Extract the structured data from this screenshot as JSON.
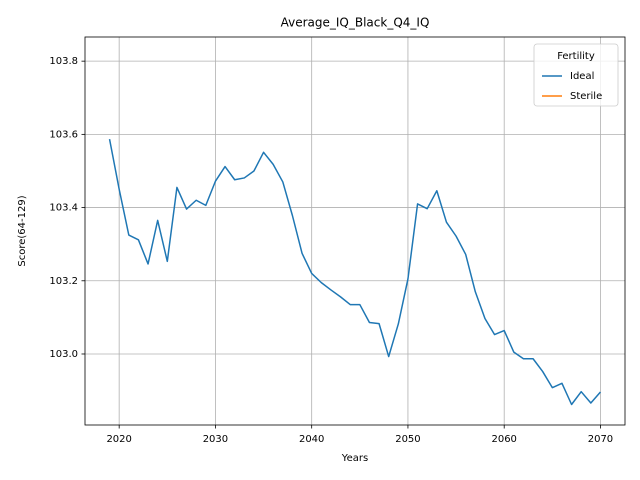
{
  "chart_data": {
    "type": "line",
    "title": "Average_IQ_Black_Q4_IQ",
    "x_label": "Years",
    "y_label": "Score(64-129)",
    "x": [
      2019,
      2020,
      2021,
      2022,
      2023,
      2024,
      2025,
      2026,
      2027,
      2028,
      2029,
      2030,
      2031,
      2032,
      2033,
      2034,
      2035,
      2036,
      2037,
      2038,
      2039,
      2040,
      2041,
      2042,
      2043,
      2044,
      2045,
      2046,
      2047,
      2048,
      2049,
      2050,
      2051,
      2052,
      2053,
      2054,
      2055,
      2056,
      2057,
      2058,
      2059,
      2060,
      2061,
      2062,
      2063,
      2064,
      2065,
      2066,
      2067,
      2068,
      2069,
      2070
    ],
    "series": [
      {
        "name": "Ideal",
        "color": "#1f77b4",
        "values": [
          103.587,
          103.45,
          103.325,
          103.312,
          103.246,
          103.365,
          103.253,
          103.455,
          103.396,
          103.42,
          103.406,
          103.472,
          103.512,
          103.476,
          103.481,
          103.5,
          103.551,
          103.518,
          103.47,
          103.378,
          103.275,
          103.22,
          103.195,
          103.175,
          103.156,
          103.135,
          103.135,
          103.086,
          103.083,
          102.993,
          103.082,
          103.205,
          103.41,
          103.397,
          103.446,
          103.36,
          103.322,
          103.272,
          103.17,
          103.097,
          103.053,
          103.064,
          103.005,
          102.987,
          102.987,
          102.952,
          102.908,
          102.92,
          102.862,
          102.897,
          102.866,
          102.896
        ]
      },
      {
        "name": "Sterile",
        "color": "#ff7f0e",
        "values": [
          null,
          null,
          null,
          null,
          null,
          null,
          null,
          null,
          null,
          null,
          null,
          null,
          null,
          null,
          null,
          null,
          null,
          null,
          null,
          null,
          null,
          null,
          null,
          null,
          null,
          null,
          null,
          null,
          null,
          null,
          null,
          null,
          null,
          null,
          null,
          null,
          null,
          null,
          null,
          null,
          null,
          null,
          null,
          null,
          null,
          null,
          null,
          null,
          null,
          null,
          null,
          null
        ]
      }
    ],
    "xlim": [
      2016.45,
      2072.55
    ],
    "xticks": [
      2020,
      2030,
      2040,
      2050,
      2060,
      2070
    ],
    "ylim": [
      102.806,
      103.866
    ],
    "yticks": [
      {
        "value": 103,
        "label": "103.0"
      },
      103.2,
      103.4,
      103.6,
      103.8
    ],
    "grid": true,
    "legend_title": "Fertility",
    "legend_position": "upper right"
  }
}
